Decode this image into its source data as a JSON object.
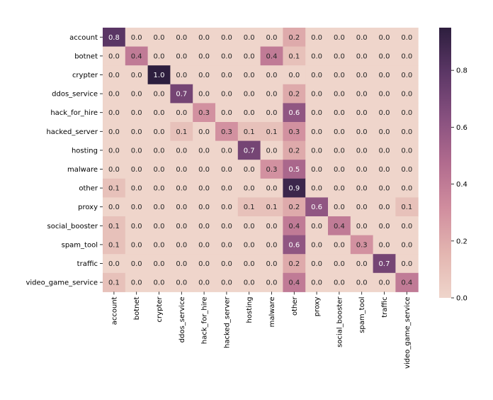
{
  "chart_data": {
    "type": "heatmap",
    "title": "",
    "xlabel": "",
    "ylabel": "",
    "rows": [
      "account",
      "botnet",
      "crypter",
      "ddos_service",
      "hack_for_hire",
      "hacked_server",
      "hosting",
      "malware",
      "other",
      "proxy",
      "social_booster",
      "spam_tool",
      "traffic",
      "video_game_service"
    ],
    "columns": [
      "account",
      "botnet",
      "crypter",
      "ddos_service",
      "hack_for_hire",
      "hacked_server",
      "hosting",
      "malware",
      "other",
      "proxy",
      "social_booster",
      "spam_tool",
      "traffic",
      "video_game_service"
    ],
    "values": [
      [
        0.8,
        0.0,
        0.0,
        0.0,
        0.0,
        0.0,
        0.0,
        0.0,
        0.2,
        0.0,
        0.0,
        0.0,
        0.0,
        0.0
      ],
      [
        0.0,
        0.4,
        0.0,
        0.0,
        0.0,
        0.0,
        0.0,
        0.4,
        0.1,
        0.0,
        0.0,
        0.0,
        0.0,
        0.0
      ],
      [
        0.0,
        0.0,
        1.0,
        0.0,
        0.0,
        0.0,
        0.0,
        0.0,
        0.0,
        0.0,
        0.0,
        0.0,
        0.0,
        0.0
      ],
      [
        0.0,
        0.0,
        0.0,
        0.7,
        0.0,
        0.0,
        0.0,
        0.0,
        0.2,
        0.0,
        0.0,
        0.0,
        0.0,
        0.0
      ],
      [
        0.0,
        0.0,
        0.0,
        0.0,
        0.3,
        0.0,
        0.0,
        0.0,
        0.6,
        0.0,
        0.0,
        0.0,
        0.0,
        0.0
      ],
      [
        0.0,
        0.0,
        0.0,
        0.1,
        0.0,
        0.3,
        0.1,
        0.1,
        0.3,
        0.0,
        0.0,
        0.0,
        0.0,
        0.0
      ],
      [
        0.0,
        0.0,
        0.0,
        0.0,
        0.0,
        0.0,
        0.7,
        0.0,
        0.2,
        0.0,
        0.0,
        0.0,
        0.0,
        0.0
      ],
      [
        0.0,
        0.0,
        0.0,
        0.0,
        0.0,
        0.0,
        0.0,
        0.3,
        0.5,
        0.0,
        0.0,
        0.0,
        0.0,
        0.0
      ],
      [
        0.1,
        0.0,
        0.0,
        0.0,
        0.0,
        0.0,
        0.0,
        0.0,
        0.9,
        0.0,
        0.0,
        0.0,
        0.0,
        0.0
      ],
      [
        0.0,
        0.0,
        0.0,
        0.0,
        0.0,
        0.0,
        0.1,
        0.1,
        0.2,
        0.6,
        0.0,
        0.0,
        0.0,
        0.1
      ],
      [
        0.1,
        0.0,
        0.0,
        0.0,
        0.0,
        0.0,
        0.0,
        0.0,
        0.4,
        0.0,
        0.4,
        0.0,
        0.0,
        0.0
      ],
      [
        0.1,
        0.0,
        0.0,
        0.0,
        0.0,
        0.0,
        0.0,
        0.0,
        0.6,
        0.0,
        0.0,
        0.3,
        0.0,
        0.0
      ],
      [
        0.0,
        0.0,
        0.0,
        0.0,
        0.0,
        0.0,
        0.0,
        0.0,
        0.2,
        0.0,
        0.0,
        0.0,
        0.7,
        0.0
      ],
      [
        0.1,
        0.0,
        0.0,
        0.0,
        0.0,
        0.0,
        0.0,
        0.0,
        0.4,
        0.0,
        0.0,
        0.0,
        0.0,
        0.4
      ]
    ],
    "colorbar": {
      "vmin": 0.0,
      "vmax": 0.95,
      "ticks": [
        "0.0",
        "0.2",
        "0.4",
        "0.6",
        "0.8"
      ],
      "colors": [
        "#efd5cb",
        "#e3b5b0",
        "#d08d9e",
        "#b16b8e",
        "#87507f",
        "#5c3766",
        "#2d1e3e"
      ]
    },
    "grid": false,
    "legend": "colorbar-right"
  }
}
